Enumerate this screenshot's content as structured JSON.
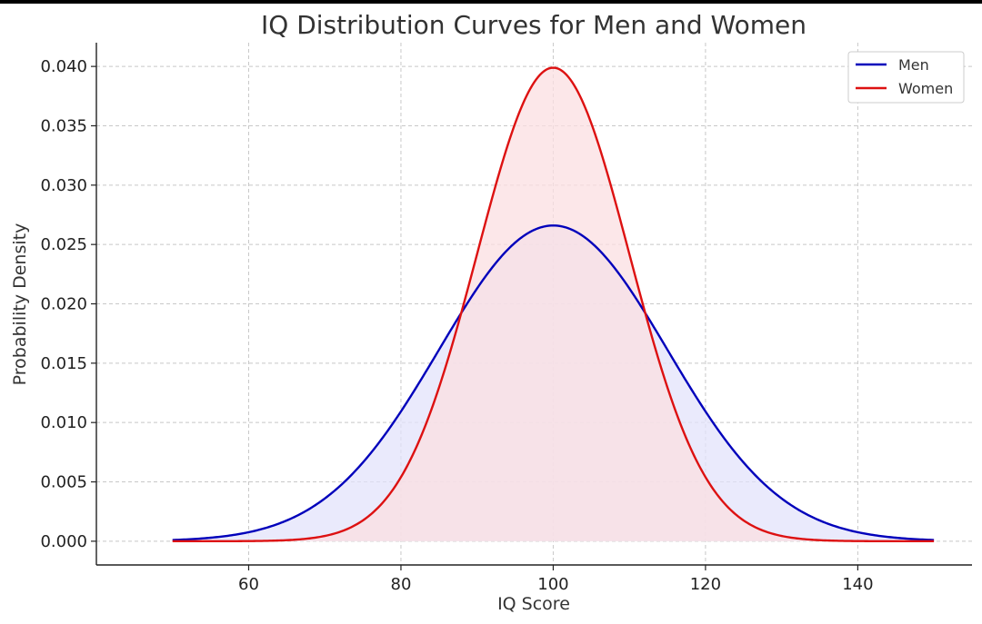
{
  "chart_data": {
    "type": "line",
    "title": "IQ Distribution Curves for Men and Women",
    "xlabel": "IQ Score",
    "ylabel": "Probability Density",
    "xlim": [
      40,
      155
    ],
    "ylim": [
      -0.002,
      0.042
    ],
    "xticks": [
      60,
      80,
      100,
      120,
      140
    ],
    "xtick_labels": [
      "60",
      "80",
      "100",
      "120",
      "140"
    ],
    "yticks": [
      0,
      0.005,
      0.01,
      0.015,
      0.02,
      0.025,
      0.03,
      0.035,
      0.04
    ],
    "ytick_labels": [
      "0.000",
      "0.005",
      "0.010",
      "0.015",
      "0.020",
      "0.025",
      "0.030",
      "0.035",
      "0.040"
    ],
    "grid": true,
    "legend_position": "top-right",
    "x_range": [
      50,
      150
    ],
    "series": [
      {
        "name": "Men",
        "distribution": "normal",
        "mean": 100,
        "sd": 15,
        "color": "#0000bb",
        "fill": "#e3e3fb",
        "peak": 0.0266
      },
      {
        "name": "Women",
        "distribution": "normal",
        "mean": 100,
        "sd": 10,
        "color": "#dd1111",
        "fill": "#fbdfe1",
        "peak": 0.0399
      }
    ]
  }
}
